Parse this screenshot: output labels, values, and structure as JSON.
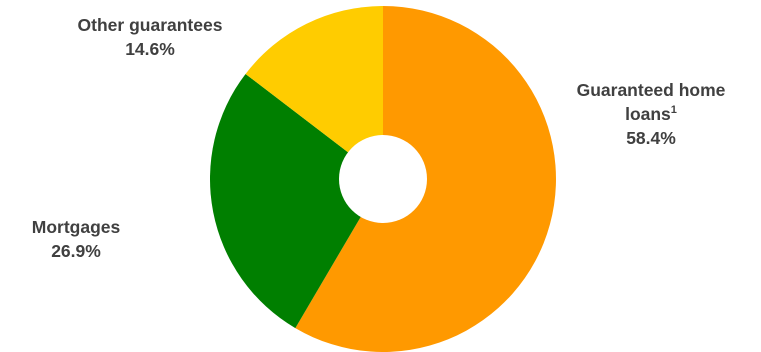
{
  "chart_data": {
    "type": "pie",
    "title": "",
    "start_angle_deg": 0,
    "direction": "clockwise",
    "donut_hole": true,
    "slices": [
      {
        "label": "Guaranteed home loans",
        "footnote": "1",
        "value": 58.4,
        "value_label": "58.4%",
        "color": "#FF9900"
      },
      {
        "label": "Mortgages",
        "value": 26.9,
        "value_label": "26.9%",
        "color": "#007F00"
      },
      {
        "label": "Other guarantees",
        "value": 14.6,
        "value_label": "14.6%",
        "color": "#FFCC00"
      }
    ]
  }
}
